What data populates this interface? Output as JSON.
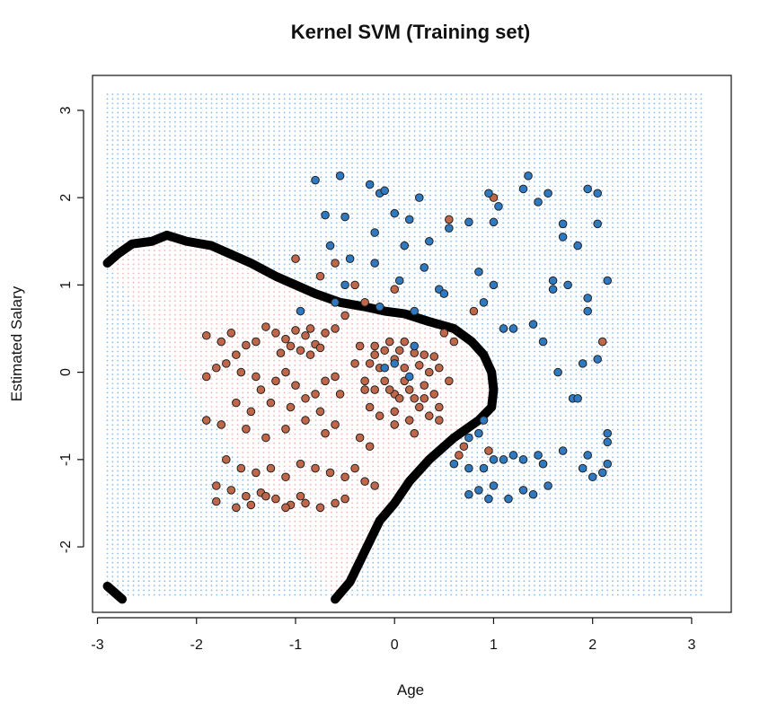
{
  "chart_data": {
    "type": "scatter",
    "title": "Kernel SVM (Training set)",
    "xlabel": "Age",
    "ylabel": "Estimated Salary",
    "xlim": [
      -3.05,
      3.4
    ],
    "ylim": [
      -2.75,
      3.4
    ],
    "x_ticks": [
      -3,
      -2,
      -1,
      0,
      1,
      2,
      3
    ],
    "y_ticks": [
      -2,
      -1,
      0,
      1,
      2,
      3
    ],
    "x_tick_labels": [
      "-3",
      "-2",
      "-1",
      "0",
      "1",
      "2",
      "3"
    ],
    "y_tick_labels": [
      "-2",
      "-1",
      "0",
      "1",
      "2",
      "3"
    ],
    "grid": false,
    "legend": "none",
    "colors": {
      "class0_fill": "#c0674a",
      "class1_fill": "#2f79c0",
      "region0": "#f08080",
      "region1": "#5aa3e8",
      "boundary": "#000000",
      "point_edge": "#222222"
    },
    "background_grid": {
      "x_range": [
        -2.9,
        3.1
      ],
      "y_range": [
        -2.55,
        3.2
      ],
      "step": 0.0526
    },
    "series": [
      {
        "label": "0",
        "color": "#c0674a",
        "points": [
          [
            -1.9,
            0.42
          ],
          [
            -1.75,
            0.35
          ],
          [
            -1.65,
            0.45
          ],
          [
            -1.6,
            0.2
          ],
          [
            -1.5,
            0.31
          ],
          [
            -1.4,
            0.35
          ],
          [
            -1.3,
            0.52
          ],
          [
            -1.2,
            0.45
          ],
          [
            -1.1,
            0.38
          ],
          [
            -1.0,
            0.48
          ],
          [
            -0.9,
            0.42
          ],
          [
            -0.85,
            0.5
          ],
          [
            -0.8,
            0.32
          ],
          [
            -0.7,
            0.45
          ],
          [
            -0.6,
            0.5
          ],
          [
            -1.15,
            0.22
          ],
          [
            -1.05,
            0.3
          ],
          [
            -0.95,
            0.25
          ],
          [
            -0.85,
            0.2
          ],
          [
            -0.75,
            0.28
          ],
          [
            -1.9,
            -0.05
          ],
          [
            -1.8,
            0.05
          ],
          [
            -1.7,
            0.1
          ],
          [
            -1.55,
            0.0
          ],
          [
            -1.4,
            -0.05
          ],
          [
            -1.35,
            -0.2
          ],
          [
            -1.2,
            -0.1
          ],
          [
            -1.1,
            0.0
          ],
          [
            -1.0,
            -0.15
          ],
          [
            -0.9,
            -0.3
          ],
          [
            -0.8,
            -0.25
          ],
          [
            -0.7,
            -0.1
          ],
          [
            -0.6,
            -0.05
          ],
          [
            -0.55,
            -0.25
          ],
          [
            -1.6,
            -0.35
          ],
          [
            -1.45,
            -0.45
          ],
          [
            -1.25,
            -0.35
          ],
          [
            -1.05,
            -0.4
          ],
          [
            -0.75,
            -0.45
          ],
          [
            -0.6,
            -0.6
          ],
          [
            -1.9,
            -0.55
          ],
          [
            -1.75,
            -0.6
          ],
          [
            -1.5,
            -0.65
          ],
          [
            -1.3,
            -0.75
          ],
          [
            -1.1,
            -0.65
          ],
          [
            -0.9,
            -0.55
          ],
          [
            -0.7,
            -0.7
          ],
          [
            -1.7,
            -1.0
          ],
          [
            -1.55,
            -1.1
          ],
          [
            -1.4,
            -1.15
          ],
          [
            -1.25,
            -1.1
          ],
          [
            -1.1,
            -1.2
          ],
          [
            -0.95,
            -1.05
          ],
          [
            -0.8,
            -1.1
          ],
          [
            -0.65,
            -1.15
          ],
          [
            -0.5,
            -1.2
          ],
          [
            -1.8,
            -1.3
          ],
          [
            -1.65,
            -1.35
          ],
          [
            -1.5,
            -1.42
          ],
          [
            -1.35,
            -1.38
          ],
          [
            -1.2,
            -1.45
          ],
          [
            -1.05,
            -1.52
          ],
          [
            -0.9,
            -1.5
          ],
          [
            -0.75,
            -1.55
          ],
          [
            -0.6,
            -1.5
          ],
          [
            -0.5,
            -1.45
          ],
          [
            -1.8,
            -1.48
          ],
          [
            -1.6,
            -1.55
          ],
          [
            -1.45,
            -1.52
          ],
          [
            -1.3,
            -1.42
          ],
          [
            -1.1,
            -1.55
          ],
          [
            -0.95,
            -1.42
          ],
          [
            -0.35,
            0.3
          ],
          [
            -0.25,
            0.1
          ],
          [
            -0.2,
            0.2
          ],
          [
            -0.15,
            0.05
          ],
          [
            -0.1,
            0.25
          ],
          [
            0.0,
            0.15
          ],
          [
            0.05,
            0.25
          ],
          [
            0.1,
            0.05
          ],
          [
            0.2,
            0.22
          ],
          [
            0.25,
            0.08
          ],
          [
            0.3,
            0.2
          ],
          [
            0.35,
            0.0
          ],
          [
            0.4,
            0.18
          ],
          [
            0.45,
            0.05
          ],
          [
            -0.3,
            -0.1
          ],
          [
            -0.2,
            -0.2
          ],
          [
            -0.1,
            -0.1
          ],
          [
            0.0,
            -0.25
          ],
          [
            0.1,
            -0.1
          ],
          [
            0.2,
            -0.3
          ],
          [
            0.3,
            -0.15
          ],
          [
            0.4,
            -0.25
          ],
          [
            0.45,
            -0.4
          ],
          [
            -0.25,
            -0.4
          ],
          [
            -0.15,
            -0.5
          ],
          [
            0.0,
            -0.45
          ],
          [
            0.15,
            -0.55
          ],
          [
            0.25,
            -0.4
          ],
          [
            0.35,
            -0.5
          ],
          [
            0.45,
            -0.55
          ],
          [
            -0.35,
            -0.75
          ],
          [
            -0.25,
            -0.85
          ],
          [
            0.0,
            -0.6
          ],
          [
            0.2,
            -0.7
          ],
          [
            -0.4,
            -1.1
          ],
          [
            -0.3,
            -1.25
          ],
          [
            -0.2,
            -1.3
          ],
          [
            -0.05,
            -0.2
          ],
          [
            0.15,
            -0.2
          ],
          [
            0.3,
            -0.3
          ],
          [
            -0.4,
            0.1
          ],
          [
            -0.3,
            -0.2
          ],
          [
            -0.2,
            0.3
          ],
          [
            0.6,
            0.35
          ],
          [
            0.55,
            -0.1
          ],
          [
            -0.05,
            0.35
          ],
          [
            0.05,
            -0.3
          ],
          [
            0.1,
            0.35
          ],
          [
            -1.0,
            1.3
          ],
          [
            -0.75,
            1.1
          ],
          [
            -0.6,
            1.25
          ],
          [
            -0.4,
            1.0
          ],
          [
            -0.3,
            0.8
          ],
          [
            -0.5,
            0.65
          ],
          [
            0.0,
            0.95
          ],
          [
            0.55,
            1.75
          ],
          [
            1.0,
            2.0
          ],
          [
            2.1,
            0.35
          ],
          [
            0.7,
            -0.85
          ],
          [
            0.95,
            -0.9
          ],
          [
            0.65,
            -0.95
          ],
          [
            0.8,
            0.7
          ],
          [
            0.5,
            0.45
          ]
        ]
      },
      {
        "label": "1",
        "color": "#2f79c0",
        "points": [
          [
            -0.8,
            2.2
          ],
          [
            -0.55,
            2.25
          ],
          [
            -0.25,
            2.15
          ],
          [
            -0.15,
            2.05
          ],
          [
            -0.1,
            2.08
          ],
          [
            0.25,
            2.0
          ],
          [
            -0.7,
            1.8
          ],
          [
            -0.5,
            1.78
          ],
          [
            -0.2,
            1.6
          ],
          [
            0.0,
            1.82
          ],
          [
            0.15,
            1.75
          ],
          [
            -0.65,
            1.45
          ],
          [
            -0.45,
            1.3
          ],
          [
            0.1,
            1.45
          ],
          [
            0.35,
            1.5
          ],
          [
            -0.5,
            1.0
          ],
          [
            -0.2,
            1.25
          ],
          [
            0.05,
            1.05
          ],
          [
            0.3,
            1.2
          ],
          [
            -0.95,
            0.7
          ],
          [
            -0.6,
            0.8
          ],
          [
            -0.15,
            0.75
          ],
          [
            0.2,
            0.7
          ],
          [
            0.45,
            0.95
          ],
          [
            0.5,
            0.9
          ],
          [
            0.85,
            1.15
          ],
          [
            1.0,
            1.0
          ],
          [
            0.9,
            0.8
          ],
          [
            0.55,
            1.65
          ],
          [
            0.75,
            1.72
          ],
          [
            0.95,
            2.05
          ],
          [
            1.05,
            1.9
          ],
          [
            1.0,
            1.72
          ],
          [
            1.35,
            2.25
          ],
          [
            1.45,
            1.95
          ],
          [
            1.55,
            2.05
          ],
          [
            1.3,
            2.1
          ],
          [
            1.7,
            1.7
          ],
          [
            1.7,
            1.55
          ],
          [
            1.85,
            1.45
          ],
          [
            1.95,
            2.1
          ],
          [
            2.05,
            2.05
          ],
          [
            2.05,
            1.7
          ],
          [
            1.6,
            1.05
          ],
          [
            1.6,
            0.95
          ],
          [
            1.75,
            1.0
          ],
          [
            1.95,
            0.85
          ],
          [
            1.95,
            0.7
          ],
          [
            2.15,
            1.05
          ],
          [
            1.1,
            0.5
          ],
          [
            1.2,
            0.5
          ],
          [
            1.4,
            0.55
          ],
          [
            1.5,
            0.35
          ],
          [
            1.65,
            0.0
          ],
          [
            1.8,
            -0.3
          ],
          [
            1.85,
            -0.3
          ],
          [
            1.9,
            0.1
          ],
          [
            2.05,
            0.15
          ],
          [
            0.9,
            -0.55
          ],
          [
            0.85,
            -0.7
          ],
          [
            0.75,
            -0.75
          ],
          [
            0.6,
            -1.05
          ],
          [
            0.75,
            -1.1
          ],
          [
            0.9,
            -1.1
          ],
          [
            1.0,
            -1.0
          ],
          [
            1.1,
            -1.0
          ],
          [
            1.2,
            -0.95
          ],
          [
            1.3,
            -1.0
          ],
          [
            1.45,
            -0.95
          ],
          [
            1.0,
            -1.3
          ],
          [
            0.85,
            -1.35
          ],
          [
            0.75,
            -1.4
          ],
          [
            0.95,
            -1.45
          ],
          [
            1.15,
            -1.45
          ],
          [
            1.3,
            -1.35
          ],
          [
            1.4,
            -1.4
          ],
          [
            1.55,
            -1.3
          ],
          [
            1.7,
            -0.9
          ],
          [
            1.95,
            -0.95
          ],
          [
            1.9,
            -1.1
          ],
          [
            2.0,
            -1.2
          ],
          [
            2.1,
            -1.15
          ],
          [
            2.15,
            -1.05
          ],
          [
            2.15,
            -0.8
          ],
          [
            2.15,
            -0.7
          ],
          [
            1.5,
            -1.05
          ],
          [
            0.2,
            0.3
          ],
          [
            0.15,
            -0.05
          ],
          [
            -0.1,
            0.05
          ],
          [
            0.0,
            0.1
          ]
        ]
      }
    ],
    "boundary": [
      [
        [
          -2.9,
          1.25
        ],
        [
          -2.8,
          1.35
        ],
        [
          -2.65,
          1.47
        ],
        [
          -2.45,
          1.5
        ],
        [
          -2.3,
          1.57
        ],
        [
          -2.1,
          1.5
        ],
        [
          -1.85,
          1.45
        ],
        [
          -1.65,
          1.35
        ],
        [
          -1.45,
          1.25
        ],
        [
          -1.2,
          1.1
        ],
        [
          -1.0,
          1.0
        ],
        [
          -0.8,
          0.9
        ],
        [
          -0.55,
          0.8
        ],
        [
          -0.3,
          0.75
        ],
        [
          -0.1,
          0.7
        ],
        [
          0.1,
          0.67
        ],
        [
          0.35,
          0.58
        ],
        [
          0.6,
          0.5
        ],
        [
          0.78,
          0.35
        ],
        [
          0.9,
          0.2
        ],
        [
          0.98,
          0.0
        ],
        [
          1.0,
          -0.2
        ],
        [
          0.98,
          -0.4
        ],
        [
          0.85,
          -0.55
        ],
        [
          0.6,
          -0.75
        ],
        [
          0.35,
          -1.0
        ],
        [
          0.15,
          -1.25
        ],
        [
          0.0,
          -1.5
        ],
        [
          -0.15,
          -1.7
        ],
        [
          -0.3,
          -2.05
        ],
        [
          -0.45,
          -2.4
        ],
        [
          -0.6,
          -2.6
        ]
      ],
      [
        [
          -2.9,
          -2.45
        ],
        [
          -2.75,
          -2.6
        ]
      ]
    ]
  }
}
